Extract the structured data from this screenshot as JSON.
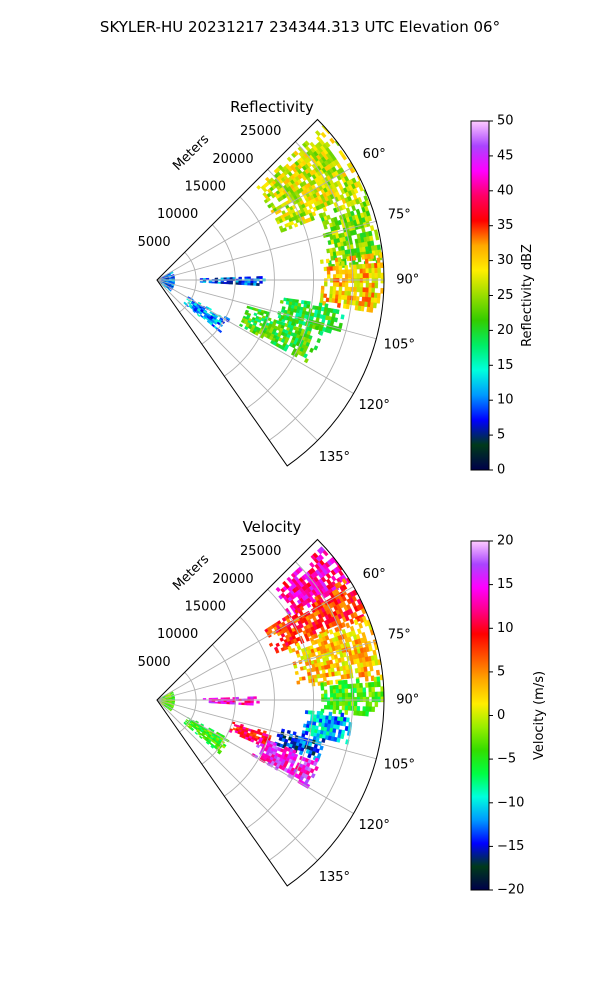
{
  "figure": {
    "suptitle": "SKYLER-HU  20231217  234344.313 UTC Elevation 06°"
  },
  "chart_data": [
    {
      "type": "ppi-sector",
      "title": "Reflectivity",
      "radial_label": "Meters",
      "radial_ticks": [
        "5000",
        "10000",
        "15000",
        "20000",
        "25000"
      ],
      "radial_tick_values": [
        5000,
        10000,
        15000,
        20000,
        25000
      ],
      "r_max": 29000,
      "azimuth_range": [
        45,
        145
      ],
      "angle_ticks": [
        "60°",
        "75°",
        "90°",
        "105°",
        "120°",
        "135°"
      ],
      "angle_tick_values": [
        60,
        75,
        90,
        105,
        120,
        135
      ],
      "grid": true,
      "colorbar": {
        "label": "Reflectivity dBZ",
        "ticks": [
          "0",
          "5",
          "10",
          "15",
          "20",
          "25",
          "30",
          "35",
          "40",
          "45",
          "50"
        ],
        "min": 0,
        "max": 50,
        "stops": [
          "#00004a",
          "#003a1a",
          "#0000ff",
          "#0099ff",
          "#00ffdd",
          "#00ee66",
          "#33cc00",
          "#99dd00",
          "#ffee00",
          "#ffaa00",
          "#ff0000",
          "#ff0066",
          "#ff00ff",
          "#aa44ff",
          "#ffccff"
        ]
      },
      "echo_regions": [
        {
          "name": "north-band",
          "az": [
            47,
            68
          ],
          "r": [
            17000,
            28800
          ],
          "value": 27
        },
        {
          "name": "north-east-line",
          "az": [
            68,
            86
          ],
          "r": [
            22000,
            28800
          ],
          "value": 24
        },
        {
          "name": "east-core",
          "az": [
            83,
            98
          ],
          "r": [
            21000,
            28800
          ],
          "value": 30
        },
        {
          "name": "east-south-line",
          "az": [
            98,
            108
          ],
          "r": [
            16000,
            24000
          ],
          "value": 20
        },
        {
          "name": "south-band",
          "az": [
            106,
            118
          ],
          "r": [
            12000,
            22000
          ],
          "value": 21
        },
        {
          "name": "near-radar",
          "az": [
            60,
            130
          ],
          "r": [
            0,
            2200
          ],
          "value": 9
        },
        {
          "name": "mid-east-clutter",
          "az": [
            88,
            93
          ],
          "r": [
            5500,
            13500
          ],
          "value": 9
        },
        {
          "name": "south-west-clutter",
          "az": [
            118,
            130
          ],
          "r": [
            4500,
            10500
          ],
          "value": 11
        }
      ]
    },
    {
      "type": "ppi-sector",
      "title": "Velocity",
      "radial_label": "Meters",
      "radial_ticks": [
        "5000",
        "10000",
        "15000",
        "20000",
        "25000"
      ],
      "radial_tick_values": [
        5000,
        10000,
        15000,
        20000,
        25000
      ],
      "r_max": 29000,
      "azimuth_range": [
        45,
        145
      ],
      "angle_ticks": [
        "60°",
        "75°",
        "90°",
        "105°",
        "120°",
        "135°"
      ],
      "angle_tick_values": [
        60,
        75,
        90,
        105,
        120,
        135
      ],
      "grid": true,
      "colorbar": {
        "label": "Velocity (m/s)",
        "ticks": [
          "−20",
          "−15",
          "−10",
          "−5",
          "0",
          "5",
          "10",
          "15",
          "20"
        ],
        "min": -20,
        "max": 20,
        "stops": [
          "#00004a",
          "#003a1a",
          "#0000ff",
          "#0099ff",
          "#00ffdd",
          "#00ff44",
          "#33dd00",
          "#99ee00",
          "#ffee00",
          "#ffaa00",
          "#ff5500",
          "#ff0000",
          "#ff0088",
          "#ff00ff",
          "#aa44ff",
          "#ffccff"
        ]
      },
      "echo_regions": [
        {
          "name": "north-band-inbound",
          "az": [
            47,
            58
          ],
          "r": [
            20000,
            28800
          ],
          "value": 13
        },
        {
          "name": "north-band",
          "az": [
            57,
            68
          ],
          "r": [
            16000,
            28800
          ],
          "value": 8
        },
        {
          "name": "north-east",
          "az": [
            68,
            84
          ],
          "r": [
            18000,
            28800
          ],
          "value": 3
        },
        {
          "name": "east-core",
          "az": [
            84,
            94
          ],
          "r": [
            21000,
            28800
          ],
          "value": -4
        },
        {
          "name": "east-south",
          "az": [
            94,
            103
          ],
          "r": [
            19000,
            25000
          ],
          "value": -11
        },
        {
          "name": "south-outbound",
          "az": [
            103,
            110
          ],
          "r": [
            16000,
            22000
          ],
          "value": -14
        },
        {
          "name": "south-band-red",
          "az": [
            106,
            113
          ],
          "r": [
            10000,
            16000
          ],
          "value": 10
        },
        {
          "name": "south-band-magenta",
          "az": [
            110,
            120
          ],
          "r": [
            14000,
            22000
          ],
          "value": 15
        },
        {
          "name": "near-radar",
          "az": [
            60,
            130
          ],
          "r": [
            0,
            2200
          ],
          "value": -3
        },
        {
          "name": "mid-east-clutter",
          "az": [
            88,
            93
          ],
          "r": [
            5500,
            13000
          ],
          "value": 14
        },
        {
          "name": "south-west-clutter",
          "az": [
            118,
            130
          ],
          "r": [
            4500,
            10500
          ],
          "value": -4
        }
      ]
    }
  ]
}
